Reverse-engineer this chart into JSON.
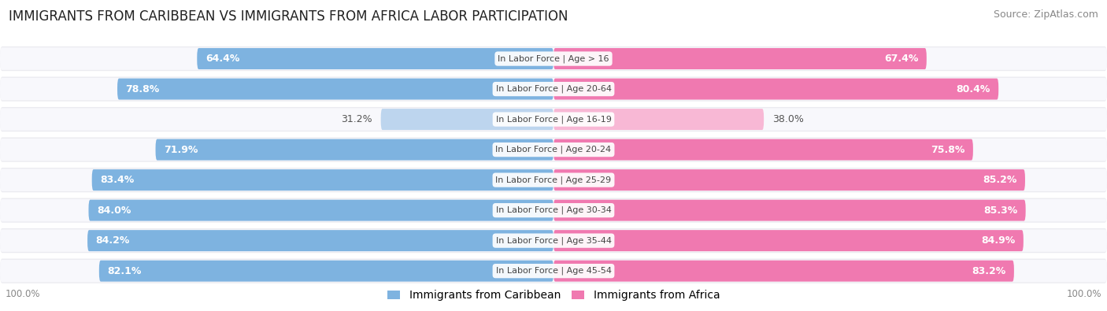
{
  "title": "IMMIGRANTS FROM CARIBBEAN VS IMMIGRANTS FROM AFRICA LABOR PARTICIPATION",
  "source": "Source: ZipAtlas.com",
  "categories": [
    "In Labor Force | Age > 16",
    "In Labor Force | Age 20-64",
    "In Labor Force | Age 16-19",
    "In Labor Force | Age 20-24",
    "In Labor Force | Age 25-29",
    "In Labor Force | Age 30-34",
    "In Labor Force | Age 35-44",
    "In Labor Force | Age 45-54"
  ],
  "caribbean_values": [
    64.4,
    78.8,
    31.2,
    71.9,
    83.4,
    84.0,
    84.2,
    82.1
  ],
  "africa_values": [
    67.4,
    80.4,
    38.0,
    75.8,
    85.2,
    85.3,
    84.9,
    83.2
  ],
  "caribbean_color": "#7EB3E0",
  "africa_color": "#F079B0",
  "caribbean_color_light": "#BDD5EE",
  "africa_color_light": "#F8B8D5",
  "row_bg_color": "#EBEBF0",
  "row_inner_bg": "#F8F8FC",
  "label_color_white": "#FFFFFF",
  "label_color_dark": "#555555",
  "max_value": 100.0,
  "title_fontsize": 12,
  "source_fontsize": 9,
  "legend_fontsize": 10,
  "value_fontsize": 9,
  "category_fontsize": 8,
  "footer_value_fontsize": 8.5,
  "figure_bg": "#FFFFFF"
}
